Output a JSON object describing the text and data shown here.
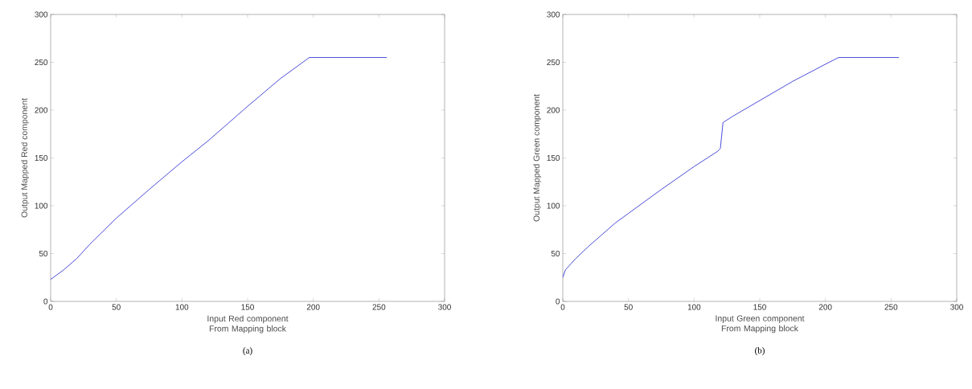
{
  "chart_data": [
    {
      "type": "line",
      "xlabel": "Input Red component From Mapping block",
      "ylabel": "Output Mapped Red component",
      "annotations": [
        "(a)"
      ],
      "xlim": [
        0,
        300
      ],
      "ylim": [
        0,
        300
      ],
      "xticks": [
        0,
        50,
        100,
        150,
        200,
        250,
        300
      ],
      "yticks": [
        0,
        50,
        100,
        150,
        200,
        250,
        300
      ],
      "grid": false,
      "marker": "none",
      "line_style": "solid",
      "series": [
        {
          "color": "#2020d0",
          "x": [
            0,
            10,
            20,
            30,
            50,
            75,
            100,
            120,
            150,
            175,
            197,
            256
          ],
          "values": [
            23,
            33,
            45,
            60,
            87,
            117,
            146,
            168,
            204,
            233,
            255,
            255
          ]
        }
      ]
    },
    {
      "type": "line",
      "xlabel": "Input Green component From Mapping block",
      "ylabel": "Output Mapped Green component",
      "annotations": [
        "(b)"
      ],
      "xlim": [
        0,
        300
      ],
      "ylim": [
        0,
        300
      ],
      "xticks": [
        0,
        50,
        100,
        150,
        200,
        250,
        300
      ],
      "yticks": [
        0,
        50,
        100,
        150,
        200,
        250,
        300
      ],
      "grid": false,
      "marker": "none",
      "line_style": "solid",
      "series": [
        {
          "color": "#2020d0",
          "x": [
            0,
            2,
            10,
            20,
            30,
            40,
            50,
            75,
            100,
            118,
            120,
            122,
            130,
            150,
            175,
            200,
            210,
            256
          ],
          "values": [
            25,
            33,
            45,
            58,
            70,
            82,
            92,
            117,
            141,
            157,
            160,
            187,
            194,
            210,
            230,
            248,
            255,
            255
          ]
        }
      ]
    }
  ]
}
